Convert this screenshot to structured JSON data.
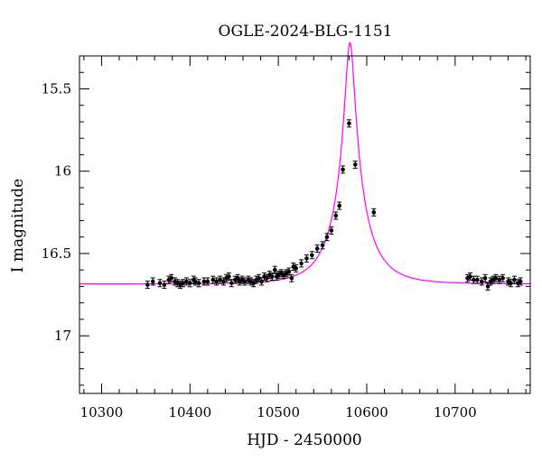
{
  "chart_data": {
    "type": "scatter",
    "title": "OGLE-2024-BLG-1151",
    "xlabel": "HJD - 2450000",
    "ylabel": "I magnitude",
    "xlim": [
      10275,
      10785
    ],
    "ylim": [
      17.35,
      15.3
    ],
    "y_inverted": true,
    "grid": false,
    "x_ticks": [
      10300,
      10400,
      10500,
      10600,
      10700
    ],
    "x_tick_labels": [
      "10300",
      "10400",
      "10500",
      "10600",
      "10700"
    ],
    "y_ticks": [
      15.5,
      16,
      16.5,
      17
    ],
    "y_tick_labels": [
      "15.5",
      "16",
      "16.5",
      "17"
    ],
    "model_color": "#ff00ff",
    "point_color": "#000000",
    "model": {
      "t0": 10581,
      "u0": 0.137,
      "tE": 38,
      "baseline_mag": 16.685,
      "blend_fraction": 0.45
    },
    "series": [
      {
        "values": [
          [
            10352,
            16.69
          ],
          [
            10358,
            16.67
          ],
          [
            10366,
            16.68
          ],
          [
            10371,
            16.69
          ],
          [
            10376,
            16.66
          ],
          [
            10379,
            16.65
          ],
          [
            10383,
            16.67
          ],
          [
            10386,
            16.68
          ],
          [
            10389,
            16.69
          ],
          [
            10392,
            16.68
          ],
          [
            10396,
            16.67
          ],
          [
            10400,
            16.68
          ],
          [
            10404,
            16.66
          ],
          [
            10406,
            16.67
          ],
          [
            10410,
            16.68
          ],
          [
            10416,
            16.67
          ],
          [
            10420,
            16.67
          ],
          [
            10426,
            16.66
          ],
          [
            10430,
            16.67
          ],
          [
            10434,
            16.66
          ],
          [
            10438,
            16.67
          ],
          [
            10441,
            16.65
          ],
          [
            10444,
            16.64
          ],
          [
            10447,
            16.68
          ],
          [
            10451,
            16.66
          ],
          [
            10454,
            16.65
          ],
          [
            10456,
            16.67
          ],
          [
            10459,
            16.66
          ],
          [
            10462,
            16.67
          ],
          [
            10466,
            16.66
          ],
          [
            10469,
            16.67
          ],
          [
            10472,
            16.68
          ],
          [
            10475,
            16.66
          ],
          [
            10478,
            16.65
          ],
          [
            10481,
            16.67
          ],
          [
            10484,
            16.64
          ],
          [
            10487,
            16.65
          ],
          [
            10490,
            16.63
          ],
          [
            10493,
            16.64
          ],
          [
            10496,
            16.6
          ],
          [
            10498,
            16.64
          ],
          [
            10500,
            16.63
          ],
          [
            10503,
            16.62
          ],
          [
            10506,
            16.63
          ],
          [
            10509,
            16.62
          ],
          [
            10512,
            16.61
          ],
          [
            10515,
            16.65
          ],
          [
            10517,
            16.58
          ],
          [
            10520,
            16.59
          ],
          [
            10526,
            16.56
          ],
          [
            10532,
            16.53
          ],
          [
            10538,
            16.51
          ],
          [
            10544,
            16.47
          ],
          [
            10550,
            16.45
          ],
          [
            10555,
            16.4
          ],
          [
            10560,
            16.36
          ],
          [
            10565,
            16.27
          ],
          [
            10569,
            16.21
          ],
          [
            10573,
            15.99
          ],
          [
            10580,
            15.71
          ],
          [
            10587,
            15.96
          ],
          [
            10608,
            16.25
          ],
          [
            10714,
            16.65
          ],
          [
            10717,
            16.64
          ],
          [
            10721,
            16.66
          ],
          [
            10725,
            16.66
          ],
          [
            10730,
            16.67
          ],
          [
            10734,
            16.65
          ],
          [
            10737,
            16.7
          ],
          [
            10740,
            16.67
          ],
          [
            10743,
            16.66
          ],
          [
            10746,
            16.65
          ],
          [
            10750,
            16.66
          ],
          [
            10754,
            16.65
          ],
          [
            10760,
            16.67
          ],
          [
            10763,
            16.68
          ],
          [
            10767,
            16.66
          ],
          [
            10771,
            16.68
          ],
          [
            10774,
            16.67
          ]
        ]
      }
    ]
  }
}
